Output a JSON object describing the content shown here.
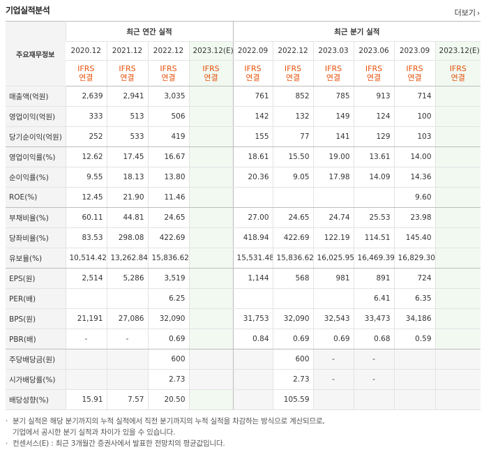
{
  "section_title": "기업실적분석",
  "more_label": "더보기",
  "row_header_label": "주요재무정보",
  "group_annual": "최근 연간 실적",
  "group_quarterly": "최근 분기 실적",
  "periods": [
    "2020.12",
    "2021.12",
    "2022.12",
    "2023.12(E)",
    "2022.09",
    "2022.12",
    "2023.03",
    "2023.06",
    "2023.09",
    "2023.12(E)"
  ],
  "ifrs_top": "IFRS",
  "ifrs_bottom": "연결",
  "rows": [
    {
      "label": "매출액(억원)",
      "values": [
        "2,639",
        "2,941",
        "3,035",
        "",
        "761",
        "852",
        "785",
        "913",
        "714",
        ""
      ]
    },
    {
      "label": "영업이익(억원)",
      "values": [
        "333",
        "513",
        "506",
        "",
        "142",
        "132",
        "149",
        "124",
        "100",
        ""
      ]
    },
    {
      "label": "당기순이익(억원)",
      "values": [
        "252",
        "533",
        "419",
        "",
        "155",
        "77",
        "141",
        "129",
        "103",
        ""
      ]
    },
    {
      "label": "영업이익률(%)",
      "values": [
        "12.62",
        "17.45",
        "16.67",
        "",
        "18.61",
        "15.50",
        "19.00",
        "13.61",
        "14.00",
        ""
      ]
    },
    {
      "label": "순이익률(%)",
      "values": [
        "9.55",
        "18.13",
        "13.80",
        "",
        "20.36",
        "9.05",
        "17.98",
        "14.09",
        "14.36",
        ""
      ]
    },
    {
      "label": "ROE(%)",
      "values": [
        "12.45",
        "21.90",
        "11.46",
        "",
        "",
        "",
        "",
        "",
        "9.60",
        ""
      ]
    },
    {
      "label": "부채비율(%)",
      "values": [
        "60.11",
        "44.81",
        "24.65",
        "",
        "27.00",
        "24.65",
        "24.74",
        "25.53",
        "23.98",
        ""
      ]
    },
    {
      "label": "당좌비율(%)",
      "values": [
        "83.53",
        "298.08",
        "422.69",
        "",
        "418.94",
        "422.69",
        "122.19",
        "114.51",
        "145.40",
        ""
      ]
    },
    {
      "label": "유보율(%)",
      "values": [
        "10,514.42",
        "13,262.84",
        "15,836.62",
        "",
        "15,531.48",
        "15,836.62",
        "16,025.95",
        "16,469.39",
        "16,829.30",
        ""
      ]
    },
    {
      "label": "EPS(원)",
      "values": [
        "2,514",
        "5,286",
        "3,519",
        "",
        "1,144",
        "568",
        "981",
        "891",
        "724",
        ""
      ]
    },
    {
      "label": "PER(배)",
      "values": [
        "",
        "",
        "6.25",
        "",
        "",
        "",
        "",
        "6.41",
        "6.35",
        ""
      ]
    },
    {
      "label": "BPS(원)",
      "values": [
        "21,191",
        "27,086",
        "32,090",
        "",
        "31,753",
        "32,090",
        "32,543",
        "33,473",
        "34,186",
        ""
      ]
    },
    {
      "label": "PBR(배)",
      "values": [
        "-",
        "-",
        "0.69",
        "",
        "0.84",
        "0.69",
        "0.69",
        "0.68",
        "0.59",
        ""
      ]
    },
    {
      "label": "주당배당금(원)",
      "values": [
        "",
        "",
        "600",
        "",
        "",
        "600",
        "-",
        "-",
        "",
        ""
      ]
    },
    {
      "label": "시가배당률(%)",
      "values": [
        "",
        "",
        "2.73",
        "",
        "",
        "2.73",
        "-",
        "-",
        "",
        ""
      ]
    },
    {
      "label": "배당성향(%)",
      "values": [
        "15.91",
        "7.57",
        "20.50",
        "",
        "",
        "105.59",
        "",
        "",
        "",
        ""
      ]
    }
  ],
  "notes": [
    "분기 실적은 해당 분기까지의 누적 실적에서 직전 분기까지의 누적 실적을 차감하는 방식으로 계산되므로,",
    "기업에서 공시한 분기 실적과 차이가 있을 수 있습니다.",
    "컨센서스(E) : 최근 3개월간 증권사에서 발표한 전망치의 평균값입니다."
  ],
  "colors": {
    "ifrs": "#e5500a",
    "estimate_bg": "#f1f9f1",
    "label_bg": "#f4f4f4"
  }
}
